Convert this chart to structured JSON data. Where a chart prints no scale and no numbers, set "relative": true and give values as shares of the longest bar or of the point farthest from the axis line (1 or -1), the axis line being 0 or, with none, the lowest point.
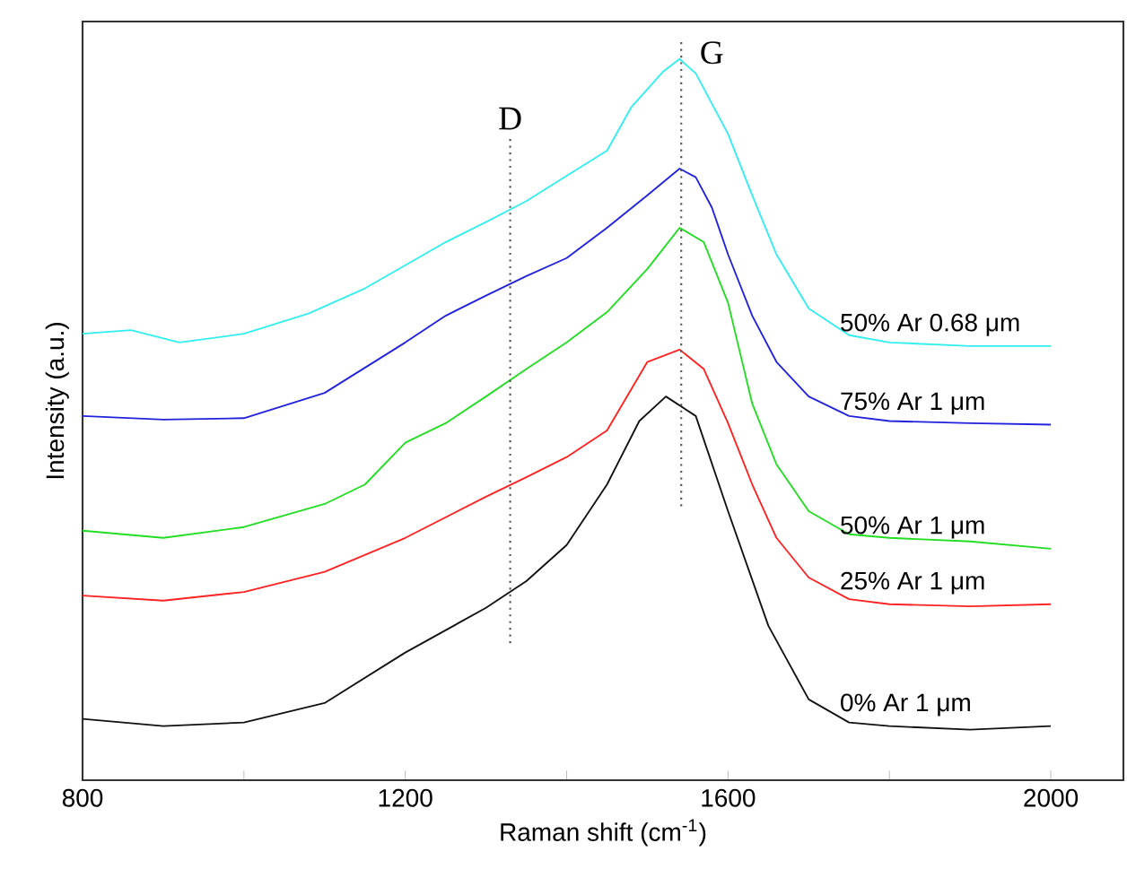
{
  "chart_data": {
    "type": "line",
    "xlabel": "Raman shift (cm$^{-1}$)",
    "ylabel": "Intensity (a.u.)",
    "relative": true,
    "xlim": [
      800,
      2090
    ],
    "xticks": [
      800,
      {
        "value": 1000,
        "label": null
      },
      1200,
      {
        "value": 1400,
        "label": null
      },
      1600,
      {
        "value": 1800,
        "label": null
      },
      2000
    ],
    "tick_labels": "x",
    "line_style": "solid",
    "ref_lines": [
      {
        "axis": "x",
        "value": 1330,
        "label": "D",
        "line_style": "dotted",
        "color": "#555555"
      },
      {
        "axis": "x",
        "value": 1542,
        "label": "G",
        "line_style": "dotted",
        "color": "#555555"
      }
    ],
    "series": [
      {
        "name": "50% Ar  0.68 μm",
        "color": "#33eef0",
        "x": [
          800,
          860,
          920,
          1000,
          1080,
          1150,
          1200,
          1250,
          1300,
          1350,
          1400,
          1450,
          1480,
          1520,
          1540,
          1560,
          1580,
          1600,
          1630,
          1660,
          1700,
          1750,
          1800,
          1900,
          2000
        ],
        "values": [
          0.619,
          0.624,
          0.607,
          0.619,
          0.647,
          0.682,
          0.714,
          0.746,
          0.774,
          0.803,
          0.838,
          0.873,
          0.933,
          0.983,
          1.0,
          0.98,
          0.938,
          0.896,
          0.811,
          0.729,
          0.654,
          0.617,
          0.607,
          0.602,
          0.602
        ]
      },
      {
        "name": "75% Ar   1 μm",
        "color": "#2222dd",
        "x": [
          800,
          900,
          1000,
          1100,
          1200,
          1250,
          1300,
          1350,
          1400,
          1450,
          1500,
          1540,
          1560,
          1580,
          1600,
          1630,
          1660,
          1700,
          1750,
          1800,
          1900,
          2000
        ],
        "values": [
          0.505,
          0.5,
          0.502,
          0.537,
          0.607,
          0.644,
          0.672,
          0.699,
          0.724,
          0.766,
          0.811,
          0.848,
          0.836,
          0.794,
          0.729,
          0.644,
          0.58,
          0.532,
          0.505,
          0.498,
          0.495,
          0.493
        ]
      },
      {
        "name": "50% Ar   1 μm",
        "color": "#22dd22",
        "x": [
          800,
          900,
          1000,
          1100,
          1150,
          1200,
          1250,
          1300,
          1350,
          1400,
          1450,
          1500,
          1540,
          1570,
          1600,
          1630,
          1660,
          1700,
          1750,
          1800,
          1900,
          2000
        ],
        "values": [
          0.346,
          0.336,
          0.351,
          0.383,
          0.41,
          0.468,
          0.495,
          0.532,
          0.57,
          0.607,
          0.649,
          0.709,
          0.766,
          0.746,
          0.662,
          0.522,
          0.438,
          0.373,
          0.341,
          0.336,
          0.331,
          0.321
        ]
      },
      {
        "name": "25% Ar   1 μm",
        "color": "#ff2222",
        "x": [
          800,
          900,
          1000,
          1100,
          1200,
          1300,
          1350,
          1400,
          1450,
          1500,
          1540,
          1570,
          1600,
          1630,
          1660,
          1700,
          1750,
          1800,
          1900,
          2000
        ],
        "values": [
          0.256,
          0.249,
          0.261,
          0.289,
          0.336,
          0.393,
          0.42,
          0.448,
          0.485,
          0.58,
          0.597,
          0.57,
          0.495,
          0.41,
          0.336,
          0.281,
          0.251,
          0.244,
          0.241,
          0.244
        ]
      },
      {
        "name": "0% Ar   1 μm",
        "color": "#111111",
        "x": [
          800,
          900,
          1000,
          1100,
          1200,
          1300,
          1350,
          1400,
          1450,
          1490,
          1523,
          1560,
          1600,
          1650,
          1700,
          1750,
          1800,
          1900,
          2000
        ],
        "values": [
          0.085,
          0.075,
          0.08,
          0.107,
          0.177,
          0.239,
          0.276,
          0.326,
          0.41,
          0.498,
          0.532,
          0.505,
          0.373,
          0.214,
          0.112,
          0.08,
          0.075,
          0.07,
          0.075
        ]
      }
    ]
  }
}
